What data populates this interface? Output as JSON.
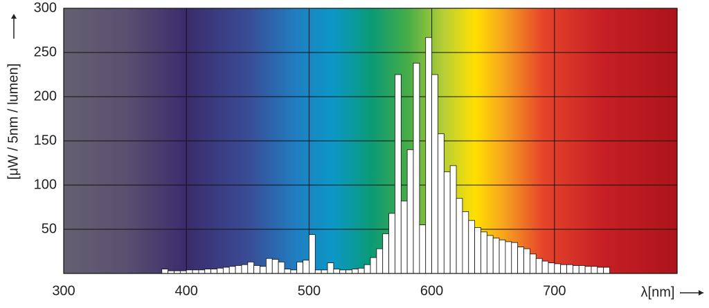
{
  "chart_data": {
    "type": "histogram",
    "x_label": "λ[nm]",
    "y_label": "[μW / 5nm / lumen]",
    "bins": [
      380,
      385,
      390,
      395,
      400,
      405,
      410,
      415,
      420,
      425,
      430,
      435,
      440,
      445,
      450,
      455,
      460,
      465,
      470,
      475,
      480,
      485,
      490,
      495,
      500,
      505,
      510,
      515,
      520,
      525,
      530,
      535,
      540,
      545,
      550,
      555,
      560,
      565,
      570,
      575,
      580,
      585,
      590,
      595,
      600,
      605,
      610,
      615,
      620,
      625,
      630,
      635,
      640,
      645,
      650,
      655,
      660,
      665,
      670,
      675,
      680,
      685,
      690,
      695,
      700,
      705,
      710,
      715,
      720,
      725,
      730,
      735,
      740,
      745
    ],
    "values": [
      5,
      3,
      3,
      3,
      4,
      4,
      4,
      5,
      5,
      6,
      7,
      8,
      9,
      10,
      13,
      9,
      8,
      17,
      16,
      13,
      5,
      4,
      13,
      15,
      44,
      4,
      4,
      12,
      5,
      4,
      4,
      5,
      6,
      10,
      18,
      28,
      45,
      68,
      225,
      82,
      140,
      238,
      55,
      267,
      225,
      158,
      115,
      122,
      85,
      70,
      60,
      52,
      47,
      43,
      40,
      38,
      36,
      35,
      30,
      28,
      22,
      17,
      14,
      12,
      11,
      10,
      10,
      9,
      9,
      8,
      8,
      7,
      7
    ],
    "color": "#ffffff",
    "xlim": [
      300,
      800
    ],
    "xticks": [
      300,
      400,
      500,
      600,
      700
    ],
    "ylim": [
      0,
      300
    ],
    "yticks": [
      50,
      100,
      150,
      200,
      250,
      300
    ],
    "grid": true
  }
}
